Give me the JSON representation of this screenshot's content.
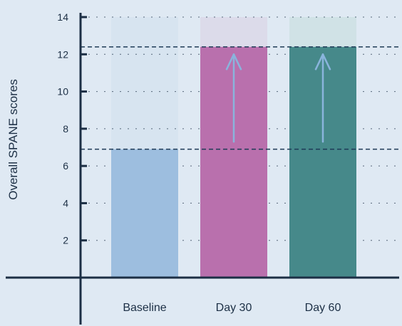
{
  "chart_data": {
    "type": "bar",
    "categories": [
      "Baseline",
      "Day 30",
      "Day 60"
    ],
    "values": [
      6.9,
      12.4,
      12.4
    ],
    "ghost_values": [
      14,
      14,
      14
    ],
    "reference_lines": [
      6.9,
      12.4
    ],
    "improvement_arrows": [
      {
        "category": "Day 30",
        "from": 7.3,
        "to": 12.0
      },
      {
        "category": "Day 60",
        "from": 7.3,
        "to": 12.0
      }
    ],
    "title": "",
    "xlabel": "",
    "ylabel": "Overall SPANE scores",
    "ylim": [
      0,
      14
    ],
    "yticks": [
      2,
      4,
      6,
      8,
      10,
      12,
      14
    ],
    "ytick_labels": [
      "2",
      "4",
      "6",
      "8",
      "10",
      "12",
      "14"
    ],
    "grid": "dotted horizontal",
    "colors": {
      "background": "#dfe9f3",
      "axis": "#1c2f45",
      "bars": [
        "#9dbedf",
        "#b970ad",
        "#46898a"
      ],
      "ghost_bars": [
        "#d7e4f0",
        "#dcdbea",
        "#d0e2e6"
      ],
      "reference_line": "#1e3a56",
      "arrow": "#8ab4dc"
    }
  }
}
